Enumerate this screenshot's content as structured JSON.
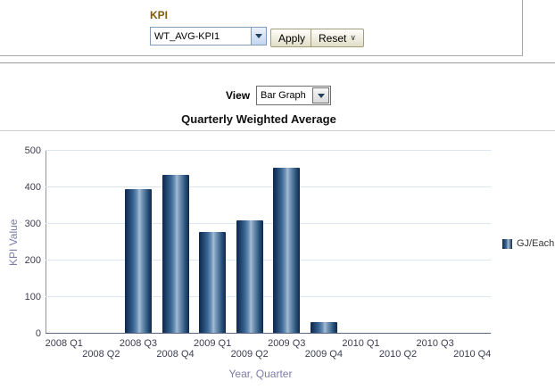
{
  "kpi_form": {
    "label": "KPI",
    "kpi_dropdown_value": "WT_AVG-KPI1",
    "apply_label": "Apply",
    "reset_label": "Reset",
    "reset_chevron": "∨"
  },
  "view_selector": {
    "label": "View",
    "value": "Bar Graph"
  },
  "chart_data": {
    "type": "bar",
    "title": "Quarterly Weighted Average",
    "xlabel": "Year, Quarter",
    "ylabel": "KPI Value",
    "categories": [
      "2008 Q1",
      "2008 Q2",
      "2008 Q3",
      "2008 Q4",
      "2009 Q1",
      "2009 Q2",
      "2009 Q3",
      "2009 Q4",
      "2010 Q1",
      "2010 Q2",
      "2010 Q3",
      "2010 Q4"
    ],
    "series": [
      {
        "name": "GJ/Each",
        "values": [
          null,
          null,
          393,
          432,
          275,
          308,
          452,
          30,
          null,
          null,
          null,
          null
        ]
      }
    ],
    "ylim": [
      0,
      500
    ],
    "yticks": [
      0,
      100,
      200,
      300,
      400,
      500
    ],
    "grid": true,
    "legend_position": "right",
    "colors": {
      "bar_dark": "#0f2a4f",
      "bar_mid": "#3a6694",
      "bar_highlight": "#a7bdd3",
      "gridline": "#dde5f0",
      "axis_title_text": "#7c7ca8",
      "tick_label_text": "#3d3d52",
      "kpi_label_text": "#7e5c04"
    }
  }
}
